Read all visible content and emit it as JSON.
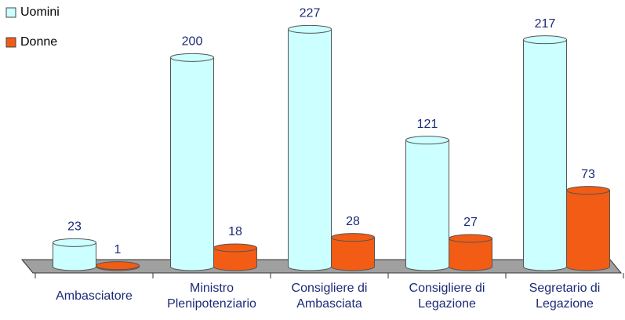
{
  "chart_data": {
    "type": "bar",
    "categories": [
      "Ambasciatore",
      "Ministro Plenipotenziario",
      "Consigliere di Ambasciata",
      "Consigliere di Legazione",
      "Segretario di Legazione"
    ],
    "series": [
      {
        "name": "Uomini",
        "color": "#ccffff",
        "values": [
          23,
          200,
          227,
          121,
          217
        ]
      },
      {
        "name": "Donne",
        "color": "#f25c14",
        "values": [
          1,
          18,
          28,
          27,
          73
        ]
      }
    ],
    "ylim": [
      0,
      240
    ],
    "legend": "top-left"
  }
}
